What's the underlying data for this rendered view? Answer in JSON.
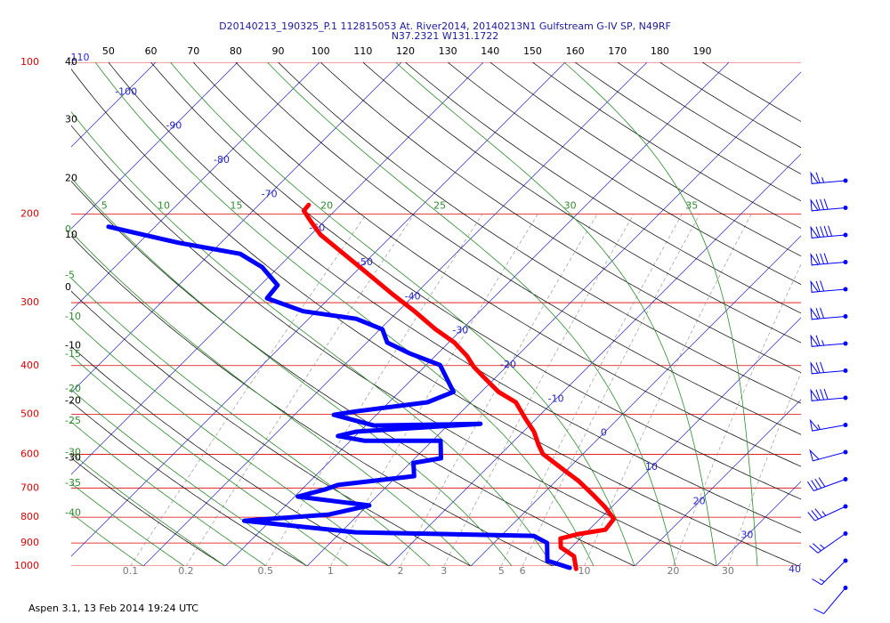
{
  "chart_data": {
    "type": "skewt",
    "title": "D20140213_190325_P.1 112815053 At. River2014, 20140213N1 Gulfstream G-IV SP, N49RF",
    "subtitle": "N37.2321 W131.1722",
    "footer": "Aspen 3.1, 13 Feb 2014  19:24 UTC",
    "log_scale": true,
    "ylim": [
      100,
      1000
    ],
    "yticks": [
      100,
      200,
      300,
      400,
      500,
      600,
      700,
      800,
      900,
      1000
    ],
    "ytick_color": "#dd0000",
    "isotherms": {
      "color": "#2828c8",
      "values": [
        -110,
        -100,
        -90,
        -80,
        -70,
        -60,
        -50,
        -40,
        -30,
        -20,
        -10,
        0,
        10,
        20,
        30,
        40
      ]
    },
    "dry_adiabats": {
      "color": "#000000",
      "values": [
        -30,
        -20,
        -10,
        0,
        10,
        20,
        30,
        40,
        50,
        60,
        70,
        80,
        90,
        100,
        110,
        120,
        130,
        140,
        150,
        160,
        170,
        180,
        190
      ]
    },
    "moist_adiabats": {
      "color": "#2e8b2e",
      "values": [
        -40,
        -35,
        -30,
        -25,
        -20,
        -15,
        -10,
        -5,
        0,
        5,
        10,
        15,
        20,
        25,
        30,
        35
      ]
    },
    "mixing_ratios": {
      "color": "#999999",
      "values": [
        0.1,
        0.2,
        0.5,
        1,
        2,
        3,
        5,
        6,
        10,
        20,
        30
      ]
    },
    "series": [
      {
        "color": "#ff0000",
        "pressure": [
          192,
          197,
          208,
          220,
          235,
          260,
          288,
          312,
          339,
          360,
          383,
          402,
          424,
          451,
          473,
          509,
          541,
          575,
          599,
          637,
          677,
          719,
          764,
          806,
          847,
          864,
          882,
          918,
          956,
          1013
        ],
        "values": [
          -63.9,
          -63.8,
          -61.4,
          -58.8,
          -54.9,
          -48.9,
          -42.9,
          -38.0,
          -33.2,
          -29.3,
          -26.1,
          -24.0,
          -21.2,
          -17.9,
          -14.5,
          -11.4,
          -8.7,
          -6.5,
          -4.9,
          -1.1,
          2.7,
          6.0,
          9.2,
          11.7,
          12.0,
          9.2,
          7.6,
          8.7,
          11.4,
          13.2
        ]
      },
      {
        "color": "#0000ff",
        "pressure": [
          212,
          228,
          240,
          255,
          277,
          294,
          312,
          323,
          339,
          360,
          378,
          399,
          451,
          473,
          493,
          501,
          526,
          522,
          541,
          552,
          564,
          564,
          611,
          624,
          663,
          690,
          705,
          728,
          758,
          790,
          813,
          857,
          871,
          900,
          976,
          1008
        ],
        "values": [
          -85.7,
          -75.3,
          -66.3,
          -62.0,
          -57.9,
          -57.6,
          -51.6,
          -44.2,
          -39.7,
          -37.5,
          -33.5,
          -28.3,
          -23.4,
          -25.3,
          -32.9,
          -35.2,
          -29.0,
          -16.2,
          -30.4,
          -32.1,
          -28.3,
          -19.0,
          -16.8,
          -19.6,
          -17.9,
          -26.1,
          -27.2,
          -29.6,
          -19.8,
          -23.6,
          -33.2,
          -18.2,
          4.0,
          6.5,
          8.7,
          12.3
        ]
      }
    ],
    "winds": {
      "color": "#0000ff",
      "speed": [
        65,
        80,
        90,
        80,
        70,
        70,
        65,
        70,
        80,
        55,
        50,
        40,
        35,
        25,
        15,
        10
      ],
      "direction": [
        265,
        265,
        265,
        265,
        265,
        265,
        265,
        265,
        265,
        260,
        255,
        250,
        245,
        235,
        225,
        220
      ]
    }
  }
}
